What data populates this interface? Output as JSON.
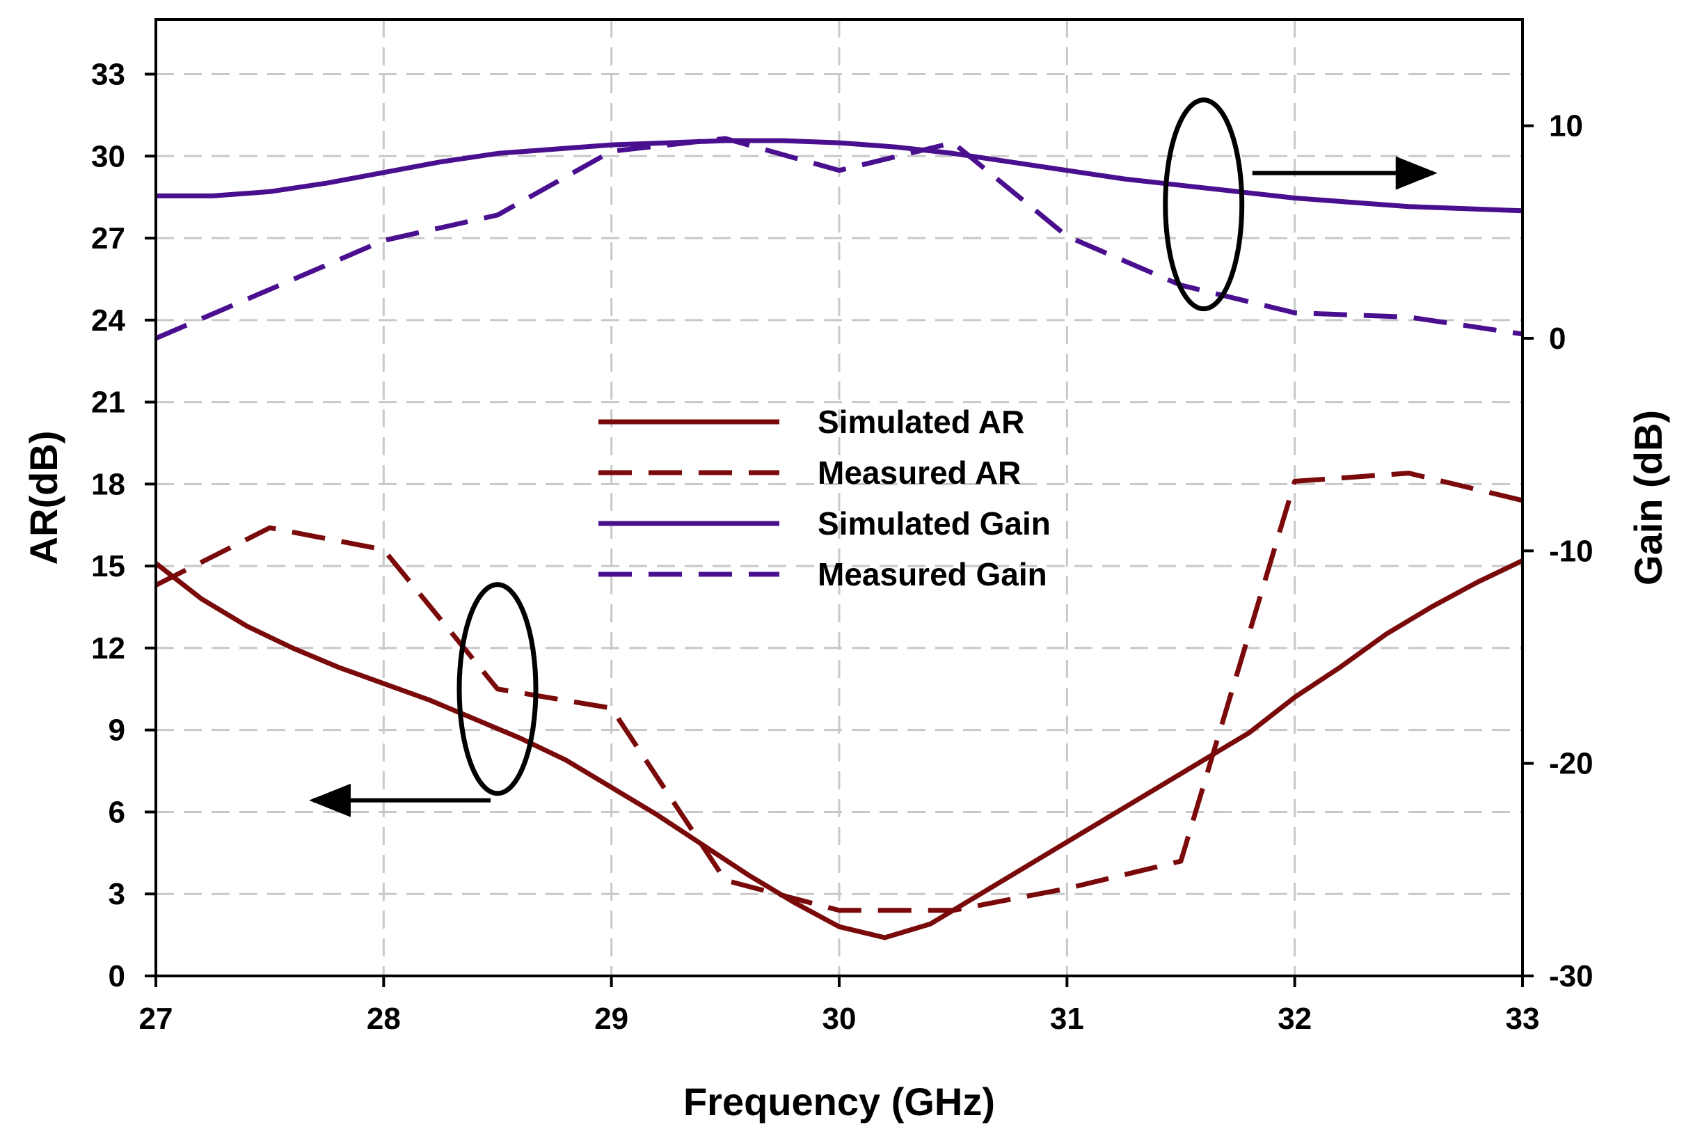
{
  "chart_data": {
    "type": "line",
    "xlabel": "Frequency (GHz)",
    "ylabel": "AR(dB)",
    "y2label": "Gain (dB)",
    "xlim": [
      27,
      33
    ],
    "ylim": [
      0,
      35
    ],
    "y2lim": [
      -30,
      15
    ],
    "xticks": [
      "27",
      "28",
      "29",
      "30",
      "31",
      "32",
      "33"
    ],
    "yticks": [
      "0",
      "3",
      "6",
      "9",
      "12",
      "15",
      "18",
      "21",
      "24",
      "27",
      "30",
      "33"
    ],
    "y2ticks": [
      "-30",
      "-20",
      "-10",
      "0",
      "10"
    ],
    "grid": true,
    "legend_position": "center",
    "series": [
      {
        "name": "Simulated AR",
        "axis": "left",
        "color": "#7a0a0a",
        "style": "solid",
        "x": [
          27.0,
          27.2,
          27.4,
          27.6,
          27.8,
          28.0,
          28.2,
          28.4,
          28.6,
          28.8,
          29.0,
          29.2,
          29.4,
          29.6,
          29.8,
          30.0,
          30.2,
          30.4,
          30.6,
          30.8,
          31.0,
          31.2,
          31.4,
          31.6,
          31.8,
          32.0,
          32.2,
          32.4,
          32.6,
          32.8,
          33.0
        ],
        "values": [
          15.1,
          13.8,
          12.8,
          12.0,
          11.3,
          10.7,
          10.1,
          9.4,
          8.7,
          7.9,
          6.9,
          5.9,
          4.8,
          3.7,
          2.7,
          1.8,
          1.4,
          1.9,
          2.9,
          3.9,
          4.9,
          5.9,
          6.9,
          7.9,
          8.9,
          10.2,
          11.3,
          12.5,
          13.5,
          14.4,
          15.2
        ]
      },
      {
        "name": "Measured AR",
        "axis": "left",
        "color": "#7a0a0a",
        "style": "dashed",
        "x": [
          27.0,
          27.5,
          28.0,
          28.5,
          29.0,
          29.5,
          30.0,
          30.5,
          31.0,
          31.5,
          32.0,
          32.5,
          33.0
        ],
        "values": [
          14.3,
          16.4,
          15.6,
          10.5,
          9.8,
          3.5,
          2.4,
          2.4,
          3.2,
          4.2,
          18.1,
          18.4,
          17.4
        ]
      },
      {
        "name": "Simulated Gain",
        "axis": "right",
        "color": "#4a0f8f",
        "style": "solid",
        "x": [
          27.0,
          27.25,
          27.5,
          27.75,
          28.0,
          28.25,
          28.5,
          28.75,
          29.0,
          29.25,
          29.5,
          29.75,
          30.0,
          30.25,
          30.5,
          30.75,
          31.0,
          31.25,
          31.5,
          31.75,
          32.0,
          32.25,
          32.5,
          32.75,
          33.0
        ],
        "values": [
          6.7,
          6.7,
          6.9,
          7.3,
          7.8,
          8.3,
          8.7,
          8.9,
          9.1,
          9.2,
          9.3,
          9.3,
          9.2,
          9.0,
          8.7,
          8.3,
          7.9,
          7.5,
          7.2,
          6.9,
          6.6,
          6.4,
          6.2,
          6.1,
          6.0
        ]
      },
      {
        "name": "Measured Gain",
        "axis": "right",
        "color": "#4a0f8f",
        "style": "dashed",
        "x": [
          27.0,
          27.5,
          28.0,
          28.5,
          29.0,
          29.5,
          30.0,
          30.5,
          31.0,
          31.5,
          32.0,
          32.5,
          33.0
        ],
        "values": [
          0.0,
          2.3,
          4.6,
          5.8,
          8.8,
          9.4,
          7.9,
          9.2,
          4.8,
          2.5,
          1.2,
          1.0,
          0.2
        ]
      }
    ],
    "annotations": [
      {
        "type": "ellipse-arrow",
        "target_axis": "left",
        "direction": "left",
        "near_x": 28.5,
        "near_value": 10.5
      },
      {
        "type": "ellipse-arrow",
        "target_axis": "right",
        "direction": "right",
        "near_x": 31.6,
        "near_value": 6.3
      }
    ]
  }
}
